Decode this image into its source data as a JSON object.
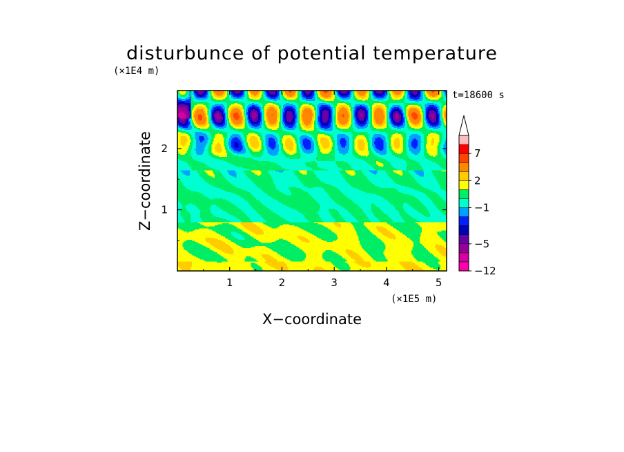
{
  "chart_data": {
    "type": "heatmap",
    "title": "disturbunce of potential temperature",
    "time_label": "t=18600 s",
    "xlabel": "X−coordinate",
    "ylabel": "Z−coordinate",
    "x_unit": "(×1E5 m)",
    "y_unit": "(×1E4 m)",
    "xlim": [
      0,
      5.15
    ],
    "ylim": [
      0,
      2.95
    ],
    "x_ticks": [
      1,
      2,
      3,
      4,
      5
    ],
    "x_tick_labels": [
      "1",
      "2",
      "3",
      "4",
      "5"
    ],
    "y_ticks": [
      1,
      2
    ],
    "y_tick_labels": [
      "1",
      "2"
    ],
    "colorbar": {
      "levels": [
        -12,
        -9,
        -7,
        -5,
        -4,
        -3,
        -2,
        -1,
        0,
        1,
        2,
        3,
        5,
        7,
        9,
        12
      ],
      "colors": [
        "#ff00aa",
        "#d400a6",
        "#9a0096",
        "#6a00a8",
        "#0000b4",
        "#0020ff",
        "#00a0ff",
        "#00ffd0",
        "#00ee66",
        "#ffff00",
        "#ffcc00",
        "#ff8800",
        "#ff4400",
        "#ff0000",
        "#ffbbbb"
      ],
      "labels": [
        "−12",
        "−5",
        "−1",
        "2",
        "7"
      ],
      "label_values": [
        -12,
        -5,
        -1,
        2,
        7
      ],
      "extend": "max"
    },
    "field_description": [
      {
        "z_range": [
          0,
          0.8
        ],
        "typical_value": 1.0,
        "pattern": "positive disturbance, yellow/orange patches"
      },
      {
        "z_range": [
          0.8,
          1.7
        ],
        "typical_value": 0.0,
        "pattern": "near-zero band, green"
      },
      {
        "z_range": [
          1.7,
          2.95
        ],
        "typical_value": 0.0,
        "pattern": "V-shaped wave packets alternating between -5 and +7"
      }
    ]
  }
}
